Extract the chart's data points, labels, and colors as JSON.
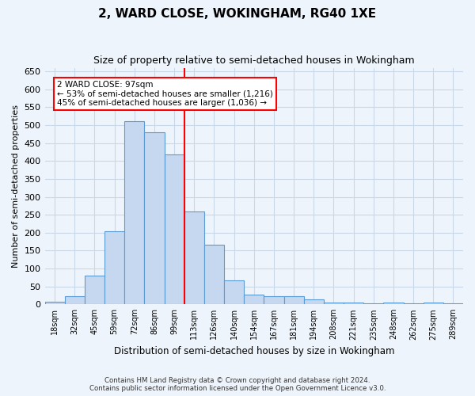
{
  "title": "2, WARD CLOSE, WOKINGHAM, RG40 1XE",
  "subtitle": "Size of property relative to semi-detached houses in Wokingham",
  "xlabel": "Distribution of semi-detached houses by size in Wokingham",
  "ylabel": "Number of semi-detached properties",
  "footer_line1": "Contains HM Land Registry data © Crown copyright and database right 2024.",
  "footer_line2": "Contains public sector information licensed under the Open Government Licence v3.0.",
  "bar_labels": [
    "18sqm",
    "32sqm",
    "45sqm",
    "59sqm",
    "72sqm",
    "86sqm",
    "99sqm",
    "113sqm",
    "126sqm",
    "140sqm",
    "154sqm",
    "167sqm",
    "181sqm",
    "194sqm",
    "208sqm",
    "221sqm",
    "235sqm",
    "248sqm",
    "262sqm",
    "275sqm",
    "289sqm"
  ],
  "bar_values": [
    7,
    23,
    80,
    205,
    510,
    480,
    418,
    260,
    167,
    68,
    27,
    22,
    23,
    14,
    4,
    6,
    2,
    5,
    2,
    5,
    3
  ],
  "bar_color": "#c5d8f0",
  "bar_edge_color": "#5b9bd5",
  "grid_color": "#c8d8e8",
  "background_color": "#eef4fb",
  "property_label": "2 WARD CLOSE: 97sqm",
  "annotation_line1": "← 53% of semi-detached houses are smaller (1,216)",
  "annotation_line2": "45% of semi-detached houses are larger (1,036) →",
  "annotation_box_color": "white",
  "annotation_box_edge": "red",
  "vline_color": "red",
  "vline_position": 6.5,
  "ylim": [
    0,
    660
  ],
  "yticks": [
    0,
    50,
    100,
    150,
    200,
    250,
    300,
    350,
    400,
    450,
    500,
    550,
    600,
    650
  ]
}
